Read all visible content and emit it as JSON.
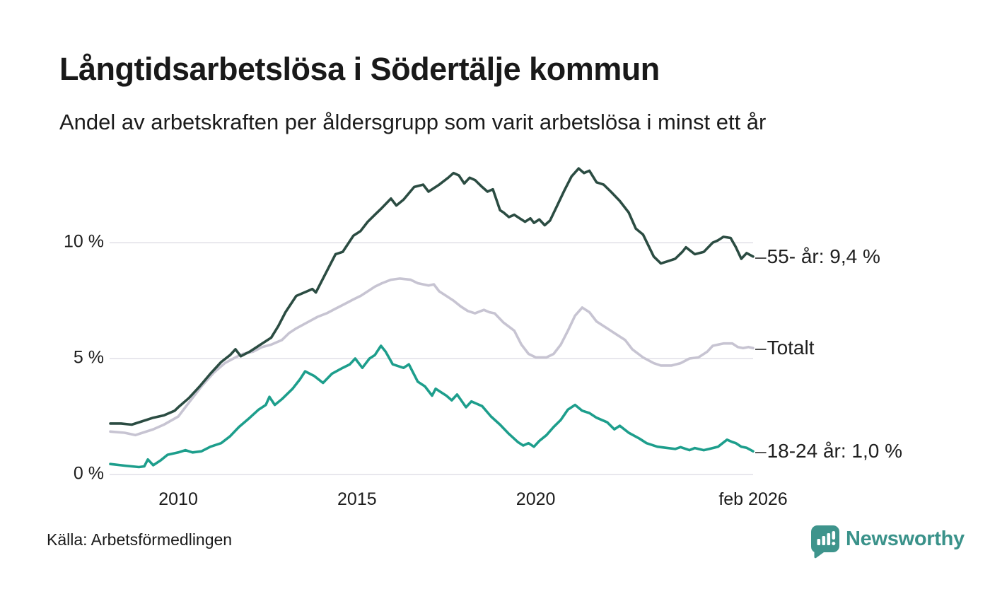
{
  "header": {
    "title": "Långtidsarbetslösa i Södertälje kommun",
    "subtitle": "Andel av arbetskraften per åldersgrupp som varit arbetslösa i minst ett år"
  },
  "footer": {
    "source": "Källa: Arbetsförmedlingen",
    "brand": "Newsworthy"
  },
  "chart_data": {
    "type": "line",
    "title": "Långtidsarbetslösa i Södertälje kommun",
    "subtitle": "Andel av arbetskraften per åldersgrupp som varit arbetslösa i minst ett år",
    "xlabel": "",
    "ylabel": "",
    "grid": "horizontal",
    "legend_position": "right-end-labels",
    "end_dash": "–",
    "x_range": [
      2008.08,
      2026.08
    ],
    "y_range": [
      0,
      13.51
    ],
    "y_ticks": [
      {
        "v": 0,
        "label": "0 %"
      },
      {
        "v": 5,
        "label": "5 %"
      },
      {
        "v": 10,
        "label": "10 %"
      }
    ],
    "x_ticks": [
      {
        "v": 2010,
        "label": "2010"
      },
      {
        "v": 2015,
        "label": "2015"
      },
      {
        "v": 2020,
        "label": "2020"
      },
      {
        "v": 2026.08,
        "label": "feb 2026"
      }
    ],
    "colors": {
      "age55": "#2b4c42",
      "total": "#c7c4d2",
      "age1824": "#1d9e8c",
      "grid": "#e8e7ed",
      "brand": "#3a928a"
    },
    "series": [
      {
        "name": "Totalt",
        "end_label": "Totalt",
        "end_value": 5.45,
        "color": "#c7c4d2",
        "width": 3.6,
        "points": [
          [
            2008.1,
            1.85
          ],
          [
            2008.5,
            1.8
          ],
          [
            2008.8,
            1.7
          ],
          [
            2009.0,
            1.8
          ],
          [
            2009.3,
            1.95
          ],
          [
            2009.6,
            2.15
          ],
          [
            2010.0,
            2.5
          ],
          [
            2010.3,
            3.1
          ],
          [
            2010.65,
            3.8
          ],
          [
            2011.0,
            4.4
          ],
          [
            2011.3,
            4.8
          ],
          [
            2011.6,
            5.05
          ],
          [
            2011.8,
            5.2
          ],
          [
            2012.1,
            5.3
          ],
          [
            2012.35,
            5.5
          ],
          [
            2012.6,
            5.6
          ],
          [
            2012.9,
            5.8
          ],
          [
            2013.1,
            6.1
          ],
          [
            2013.3,
            6.3
          ],
          [
            2013.6,
            6.55
          ],
          [
            2013.9,
            6.8
          ],
          [
            2014.15,
            6.95
          ],
          [
            2014.4,
            7.15
          ],
          [
            2014.65,
            7.35
          ],
          [
            2014.9,
            7.55
          ],
          [
            2015.1,
            7.7
          ],
          [
            2015.3,
            7.9
          ],
          [
            2015.5,
            8.1
          ],
          [
            2015.7,
            8.25
          ],
          [
            2015.95,
            8.4
          ],
          [
            2016.2,
            8.45
          ],
          [
            2016.5,
            8.4
          ],
          [
            2016.7,
            8.25
          ],
          [
            2017.0,
            8.15
          ],
          [
            2017.15,
            8.2
          ],
          [
            2017.3,
            7.9
          ],
          [
            2017.5,
            7.7
          ],
          [
            2017.7,
            7.5
          ],
          [
            2017.9,
            7.25
          ],
          [
            2018.1,
            7.05
          ],
          [
            2018.3,
            6.95
          ],
          [
            2018.55,
            7.1
          ],
          [
            2018.7,
            7.0
          ],
          [
            2018.85,
            6.95
          ],
          [
            2019.1,
            6.55
          ],
          [
            2019.4,
            6.2
          ],
          [
            2019.6,
            5.6
          ],
          [
            2019.8,
            5.2
          ],
          [
            2020.0,
            5.05
          ],
          [
            2020.3,
            5.05
          ],
          [
            2020.5,
            5.2
          ],
          [
            2020.7,
            5.6
          ],
          [
            2020.9,
            6.2
          ],
          [
            2021.1,
            6.85
          ],
          [
            2021.3,
            7.2
          ],
          [
            2021.5,
            7.0
          ],
          [
            2021.7,
            6.6
          ],
          [
            2022.0,
            6.3
          ],
          [
            2022.2,
            6.1
          ],
          [
            2022.5,
            5.8
          ],
          [
            2022.7,
            5.4
          ],
          [
            2023.0,
            5.05
          ],
          [
            2023.3,
            4.8
          ],
          [
            2023.5,
            4.7
          ],
          [
            2023.8,
            4.7
          ],
          [
            2024.05,
            4.8
          ],
          [
            2024.3,
            5.0
          ],
          [
            2024.55,
            5.05
          ],
          [
            2024.8,
            5.3
          ],
          [
            2024.95,
            5.55
          ],
          [
            2025.25,
            5.65
          ],
          [
            2025.5,
            5.65
          ],
          [
            2025.65,
            5.5
          ],
          [
            2025.8,
            5.45
          ],
          [
            2025.95,
            5.5
          ],
          [
            2026.08,
            5.45
          ]
        ]
      },
      {
        "name": "55- år",
        "end_label": "55- år: 9,4 %",
        "end_value": 9.4,
        "color": "#2b4c42",
        "width": 3.6,
        "points": [
          [
            2008.1,
            2.2
          ],
          [
            2008.4,
            2.2
          ],
          [
            2008.7,
            2.15
          ],
          [
            2009.0,
            2.3
          ],
          [
            2009.3,
            2.45
          ],
          [
            2009.6,
            2.55
          ],
          [
            2009.9,
            2.75
          ],
          [
            2010.0,
            2.9
          ],
          [
            2010.3,
            3.3
          ],
          [
            2010.6,
            3.8
          ],
          [
            2010.9,
            4.35
          ],
          [
            2011.2,
            4.85
          ],
          [
            2011.45,
            5.15
          ],
          [
            2011.6,
            5.4
          ],
          [
            2011.75,
            5.1
          ],
          [
            2012.0,
            5.3
          ],
          [
            2012.3,
            5.6
          ],
          [
            2012.6,
            5.9
          ],
          [
            2012.8,
            6.4
          ],
          [
            2013.0,
            7.0
          ],
          [
            2013.3,
            7.7
          ],
          [
            2013.6,
            7.9
          ],
          [
            2013.75,
            8.0
          ],
          [
            2013.85,
            7.85
          ],
          [
            2014.1,
            8.6
          ],
          [
            2014.4,
            9.5
          ],
          [
            2014.6,
            9.6
          ],
          [
            2014.9,
            10.3
          ],
          [
            2015.1,
            10.5
          ],
          [
            2015.3,
            10.9
          ],
          [
            2015.5,
            11.2
          ],
          [
            2015.7,
            11.5
          ],
          [
            2015.95,
            11.9
          ],
          [
            2016.1,
            11.6
          ],
          [
            2016.3,
            11.85
          ],
          [
            2016.6,
            12.4
          ],
          [
            2016.85,
            12.5
          ],
          [
            2017.0,
            12.2
          ],
          [
            2017.3,
            12.5
          ],
          [
            2017.55,
            12.8
          ],
          [
            2017.7,
            13.0
          ],
          [
            2017.85,
            12.9
          ],
          [
            2018.0,
            12.55
          ],
          [
            2018.15,
            12.8
          ],
          [
            2018.3,
            12.7
          ],
          [
            2018.5,
            12.4
          ],
          [
            2018.65,
            12.2
          ],
          [
            2018.8,
            12.3
          ],
          [
            2019.0,
            11.4
          ],
          [
            2019.1,
            11.3
          ],
          [
            2019.25,
            11.1
          ],
          [
            2019.4,
            11.2
          ],
          [
            2019.55,
            11.05
          ],
          [
            2019.7,
            10.9
          ],
          [
            2019.85,
            11.05
          ],
          [
            2019.95,
            10.85
          ],
          [
            2020.1,
            11.0
          ],
          [
            2020.25,
            10.75
          ],
          [
            2020.4,
            10.95
          ],
          [
            2020.6,
            11.6
          ],
          [
            2020.8,
            12.25
          ],
          [
            2021.0,
            12.85
          ],
          [
            2021.2,
            13.2
          ],
          [
            2021.35,
            13.0
          ],
          [
            2021.5,
            13.1
          ],
          [
            2021.7,
            12.6
          ],
          [
            2021.9,
            12.5
          ],
          [
            2022.1,
            12.2
          ],
          [
            2022.35,
            11.8
          ],
          [
            2022.6,
            11.3
          ],
          [
            2022.8,
            10.6
          ],
          [
            2023.0,
            10.35
          ],
          [
            2023.3,
            9.4
          ],
          [
            2023.5,
            9.1
          ],
          [
            2023.7,
            9.2
          ],
          [
            2023.9,
            9.3
          ],
          [
            2024.1,
            9.6
          ],
          [
            2024.2,
            9.8
          ],
          [
            2024.45,
            9.5
          ],
          [
            2024.7,
            9.6
          ],
          [
            2024.95,
            10.0
          ],
          [
            2025.1,
            10.1
          ],
          [
            2025.25,
            10.25
          ],
          [
            2025.45,
            10.2
          ],
          [
            2025.6,
            9.8
          ],
          [
            2025.75,
            9.3
          ],
          [
            2025.9,
            9.55
          ],
          [
            2026.08,
            9.4
          ]
        ]
      },
      {
        "name": "18-24 år",
        "end_label": "18-24 år: 1,0 %",
        "end_value": 1.0,
        "color": "#1d9e8c",
        "width": 3.6,
        "points": [
          [
            2008.1,
            0.45
          ],
          [
            2008.5,
            0.38
          ],
          [
            2008.9,
            0.32
          ],
          [
            2009.05,
            0.35
          ],
          [
            2009.15,
            0.65
          ],
          [
            2009.3,
            0.4
          ],
          [
            2009.5,
            0.6
          ],
          [
            2009.7,
            0.85
          ],
          [
            2010.0,
            0.95
          ],
          [
            2010.2,
            1.05
          ],
          [
            2010.4,
            0.95
          ],
          [
            2010.65,
            1.0
          ],
          [
            2010.9,
            1.2
          ],
          [
            2011.2,
            1.35
          ],
          [
            2011.45,
            1.65
          ],
          [
            2011.7,
            2.05
          ],
          [
            2012.0,
            2.45
          ],
          [
            2012.25,
            2.8
          ],
          [
            2012.45,
            3.0
          ],
          [
            2012.55,
            3.35
          ],
          [
            2012.7,
            3.0
          ],
          [
            2012.9,
            3.25
          ],
          [
            2013.2,
            3.7
          ],
          [
            2013.4,
            4.1
          ],
          [
            2013.55,
            4.45
          ],
          [
            2013.8,
            4.25
          ],
          [
            2014.05,
            3.95
          ],
          [
            2014.3,
            4.35
          ],
          [
            2014.6,
            4.6
          ],
          [
            2014.8,
            4.75
          ],
          [
            2014.95,
            5.0
          ],
          [
            2015.15,
            4.6
          ],
          [
            2015.35,
            5.0
          ],
          [
            2015.5,
            5.15
          ],
          [
            2015.67,
            5.55
          ],
          [
            2015.8,
            5.3
          ],
          [
            2016.0,
            4.75
          ],
          [
            2016.3,
            4.6
          ],
          [
            2016.45,
            4.75
          ],
          [
            2016.7,
            4.0
          ],
          [
            2016.9,
            3.8
          ],
          [
            2017.0,
            3.6
          ],
          [
            2017.1,
            3.4
          ],
          [
            2017.2,
            3.7
          ],
          [
            2017.35,
            3.55
          ],
          [
            2017.5,
            3.4
          ],
          [
            2017.65,
            3.2
          ],
          [
            2017.8,
            3.45
          ],
          [
            2018.05,
            2.9
          ],
          [
            2018.2,
            3.15
          ],
          [
            2018.35,
            3.05
          ],
          [
            2018.5,
            2.95
          ],
          [
            2018.75,
            2.5
          ],
          [
            2019.0,
            2.15
          ],
          [
            2019.25,
            1.75
          ],
          [
            2019.5,
            1.4
          ],
          [
            2019.65,
            1.25
          ],
          [
            2019.8,
            1.35
          ],
          [
            2019.95,
            1.2
          ],
          [
            2020.1,
            1.45
          ],
          [
            2020.3,
            1.7
          ],
          [
            2020.5,
            2.05
          ],
          [
            2020.7,
            2.35
          ],
          [
            2020.9,
            2.8
          ],
          [
            2021.1,
            3.0
          ],
          [
            2021.3,
            2.75
          ],
          [
            2021.5,
            2.65
          ],
          [
            2021.7,
            2.45
          ],
          [
            2022.0,
            2.25
          ],
          [
            2022.2,
            1.95
          ],
          [
            2022.35,
            2.1
          ],
          [
            2022.6,
            1.8
          ],
          [
            2022.9,
            1.55
          ],
          [
            2023.1,
            1.35
          ],
          [
            2023.4,
            1.2
          ],
          [
            2023.65,
            1.15
          ],
          [
            2023.9,
            1.1
          ],
          [
            2024.05,
            1.18
          ],
          [
            2024.3,
            1.05
          ],
          [
            2024.45,
            1.14
          ],
          [
            2024.7,
            1.05
          ],
          [
            2024.85,
            1.1
          ],
          [
            2025.1,
            1.2
          ],
          [
            2025.35,
            1.5
          ],
          [
            2025.5,
            1.4
          ],
          [
            2025.6,
            1.35
          ],
          [
            2025.75,
            1.2
          ],
          [
            2025.9,
            1.15
          ],
          [
            2026.08,
            1.0
          ]
        ]
      }
    ]
  }
}
